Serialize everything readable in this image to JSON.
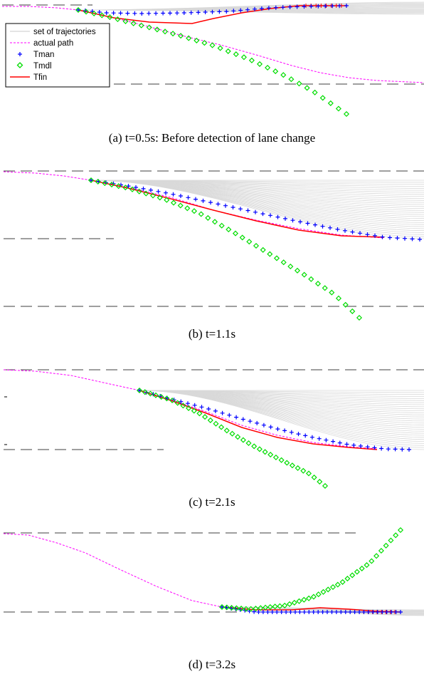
{
  "chart_data": [
    {
      "type": "line",
      "caption": "(a) t=0.5s: Before detection of lane change",
      "legend": {
        "placement": "top-left",
        "items": [
          {
            "label": "set of trajectories",
            "style": "thin-gray-solid",
            "color": "#c8c8c8"
          },
          {
            "label": "actual path",
            "style": "dashed",
            "color": "#ff00ff"
          },
          {
            "label": "Tman",
            "style": "plus-marker",
            "color": "#0000ff"
          },
          {
            "label": "Tmdl",
            "style": "diamond-marker",
            "color": "#00dd00"
          },
          {
            "label": "Tfin",
            "style": "solid",
            "color": "#ff0000"
          }
        ]
      },
      "lanes": [
        {
          "x": [
            3,
            130
          ],
          "y": 7
        },
        {
          "x": [
            160,
            596
          ],
          "y": 118
        }
      ],
      "fan": {
        "x0": 110,
        "y0": 14,
        "x1": 596,
        "ymin": 3,
        "ymax": 20,
        "n": 16
      },
      "series": [
        {
          "name": "actual path",
          "kind": "actual",
          "color": "#ff00ff",
          "x": [
            3,
            40,
            80,
            110,
            160,
            200,
            260,
            310,
            360,
            410,
            450,
            490,
            530,
            596
          ],
          "y": [
            9,
            9,
            11,
            14,
            25,
            35,
            51,
            63,
            77,
            92,
            102,
            109,
            113,
            116
          ]
        },
        {
          "name": "Tman",
          "kind": "plus",
          "color": "#0000ff",
          "x": [
            110,
            150,
            200,
            260,
            320,
            380,
            430,
            487
          ],
          "y": [
            14,
            18,
            19,
            18,
            16,
            11,
            9,
            8
          ],
          "count": 39
        },
        {
          "name": "Tmdl",
          "kind": "diamond",
          "color": "#00dd00",
          "x": [
            110,
            150,
            200,
            250,
            300,
            350,
            400,
            440,
            487
          ],
          "y": [
            14,
            23,
            36,
            49,
            64,
            83,
            106,
            128,
            160
          ],
          "count": 35
        },
        {
          "name": "Tfin",
          "kind": "solid",
          "color": "#ff0000",
          "x": [
            110,
            160,
            210,
            270,
            300,
            340,
            380,
            420,
            487
          ],
          "y": [
            14,
            25,
            31,
            33,
            26,
            18,
            12,
            8,
            8
          ]
        }
      ],
      "fin_ticks": {
        "x0": 430,
        "x1": 487,
        "y": 8,
        "count": 9
      }
    },
    {
      "type": "line",
      "caption": "(b) t=1.1s",
      "lanes": [
        {
          "x": [
            5,
            596
          ],
          "y": 240
        },
        {
          "x": [
            5,
            160
          ],
          "y": 335
        },
        {
          "x": [
            5,
            596
          ],
          "y": 430
        }
      ],
      "fan": {
        "x0": 128,
        "y0": 253,
        "x1": 596,
        "ymin": 253,
        "ymax": 335,
        "n": 30
      },
      "series": [
        {
          "name": "actual path",
          "kind": "actual",
          "color": "#ff00ff",
          "x": [
            5,
            50,
            90,
            128,
            180,
            240,
            300,
            360,
            420,
            480,
            540
          ],
          "y": [
            241,
            243,
            247,
            253,
            263,
            277,
            295,
            309,
            321,
            330,
            334
          ]
        },
        {
          "name": "Tman",
          "kind": "plus",
          "color": "#0000ff",
          "x": [
            128,
            180,
            240,
            300,
            360,
            420,
            480,
            540,
            590
          ],
          "y": [
            253,
            261,
            272,
            285,
            298,
            311,
            323,
            333,
            336
          ],
          "count": 45
        },
        {
          "name": "Tmdl",
          "kind": "diamond",
          "color": "#00dd00",
          "x": [
            128,
            180,
            230,
            280,
            330,
            380,
            430,
            470,
            505
          ],
          "y": [
            253,
            264,
            279,
            299,
            327,
            357,
            387,
            413,
            446
          ],
          "count": 40
        },
        {
          "name": "Tfin",
          "kind": "solid",
          "color": "#ff0000",
          "x": [
            128,
            180,
            240,
            300,
            360,
            420,
            480,
            540
          ],
          "y": [
            253,
            264,
            279,
            295,
            310,
            323,
            331,
            333
          ]
        }
      ]
    },
    {
      "type": "line",
      "caption": "(c) t=2.1s",
      "lanes": [
        {
          "x": [
            5,
            596
          ],
          "y": 519
        },
        {
          "x": [
            5,
            230
          ],
          "y": 631
        }
      ],
      "fan": {
        "x0": 196,
        "y0": 548,
        "x1": 596,
        "ymin": 548,
        "ymax": 631,
        "n": 30
      },
      "series": [
        {
          "name": "actual path",
          "kind": "actual",
          "color": "#ff00ff",
          "x": [
            5,
            50,
            100,
            150,
            196,
            240,
            290,
            340,
            390,
            440,
            490,
            530
          ],
          "y": [
            519,
            521,
            527,
            538,
            548,
            561,
            578,
            597,
            611,
            621,
            627,
            630
          ]
        },
        {
          "name": "Tman",
          "kind": "plus",
          "color": "#0000ff",
          "x": [
            196,
            240,
            290,
            340,
            390,
            440,
            490,
            540,
            575
          ],
          "y": [
            548,
            560,
            573,
            588,
            602,
            614,
            624,
            630,
            631
          ],
          "count": 40
        },
        {
          "name": "Tmdl",
          "kind": "diamond",
          "color": "#00dd00",
          "x": [
            196,
            240,
            280,
            320,
            360,
            400,
            435,
            457
          ],
          "y": [
            548,
            561,
            580,
            605,
            628,
            648,
            665,
            682
          ],
          "count": 35
        },
        {
          "name": "Tfin",
          "kind": "solid",
          "color": "#ff0000",
          "x": [
            196,
            240,
            290,
            340,
            390,
            440,
            490,
            530
          ],
          "y": [
            548,
            562,
            580,
            600,
            614,
            623,
            628,
            631
          ]
        }
      ],
      "side_ticks": [
        {
          "x": 8,
          "y": 557
        },
        {
          "x": 8,
          "y": 624
        }
      ]
    },
    {
      "type": "line",
      "caption": "(d) t=3.2s",
      "lanes": [
        {
          "x": [
            5,
            500
          ],
          "y": 748
        },
        {
          "x": [
            5,
            340
          ],
          "y": 859
        }
      ],
      "fan": {
        "x0": 312,
        "y0": 852,
        "x1": 596,
        "ymin": 856,
        "ymax": 864,
        "n": 12
      },
      "series": [
        {
          "name": "actual path",
          "kind": "actual",
          "color": "#ff00ff",
          "x": [
            5,
            40,
            80,
            120,
            170,
            220,
            270,
            312
          ],
          "y": [
            749,
            751,
            762,
            776,
            800,
            823,
            843,
            852
          ]
        },
        {
          "name": "Tman",
          "kind": "plus",
          "color": "#0000ff",
          "x": [
            312,
            360,
            410,
            460,
            510,
            563
          ],
          "y": [
            852,
            859,
            859,
            859,
            859,
            859
          ],
          "count": 40
        },
        {
          "name": "Tmdl",
          "kind": "diamond",
          "color": "#00dd00",
          "x": [
            312,
            350,
            400,
            440,
            480,
            520,
            563
          ],
          "y": [
            852,
            855,
            850,
            838,
            818,
            790,
            744
          ],
          "count": 38
        },
        {
          "name": "Tfin",
          "kind": "solid",
          "color": "#ff0000",
          "x": [
            312,
            360,
            410,
            450,
            490,
            530,
            563
          ],
          "y": [
            852,
            856,
            856,
            853,
            855,
            858,
            859
          ]
        }
      ],
      "fin_ticks": {
        "x0": 505,
        "x1": 555,
        "y": 859,
        "count": 9
      }
    }
  ]
}
